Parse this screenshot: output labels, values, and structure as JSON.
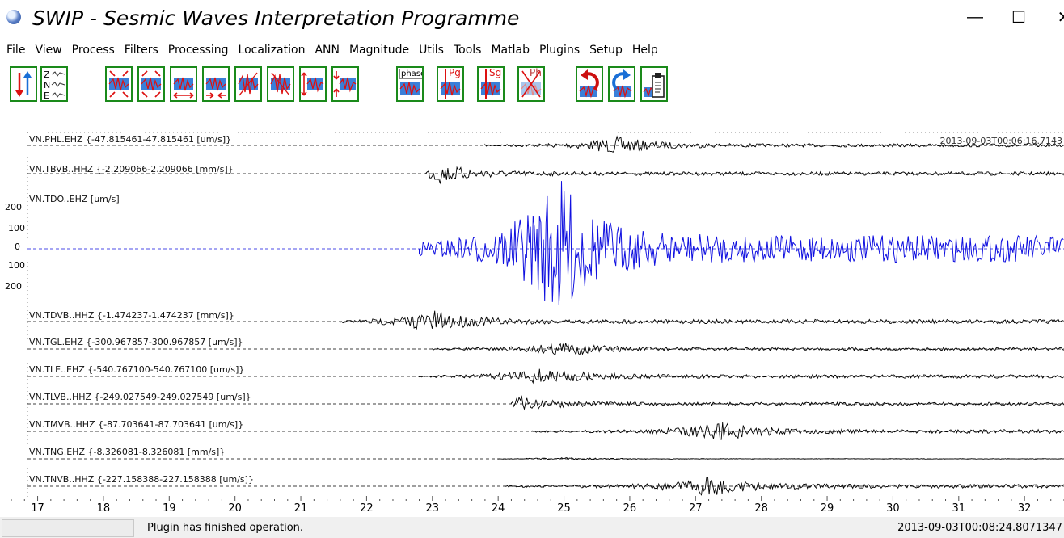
{
  "window": {
    "title": "SWIP - Sesmic Waves Interpretation Programme",
    "minimize_glyph": "—",
    "maximize_glyph": "☐",
    "close_glyph": "✕"
  },
  "menu": [
    "File",
    "View",
    "Process",
    "Filters",
    "Processing",
    "Localization",
    "ANN",
    "Magnitude",
    "Utils",
    "Tools",
    "Matlab",
    "Plugins",
    "Setup",
    "Help"
  ],
  "toolbar": {
    "buttons": [
      {
        "icon": "sort-traces-icon"
      },
      {
        "icon": "components-zne-icon",
        "text": "Z N E"
      },
      {
        "icon": "zoom-in-icon"
      },
      {
        "icon": "zoom-out-icon"
      },
      {
        "icon": "time-expand-icon"
      },
      {
        "icon": "time-compress-icon"
      },
      {
        "icon": "amplitude-up-icon"
      },
      {
        "icon": "amplitude-down-icon"
      },
      {
        "icon": "amplitude-increase-icon"
      },
      {
        "icon": "amplitude-decrease-icon"
      },
      {
        "icon": "phase-icon",
        "text": "phase"
      },
      {
        "icon": "pg-pick-icon",
        "text": "Pg"
      },
      {
        "icon": "sg-pick-icon",
        "text": "Sg"
      },
      {
        "icon": "delete-ph-icon",
        "text": "Ph"
      },
      {
        "icon": "undo-icon"
      },
      {
        "icon": "redo-icon"
      },
      {
        "icon": "clipboard-icon"
      }
    ]
  },
  "traces": [
    {
      "label": "VN.PHL.EHZ {-47.815461-47.815461 [um/s]}",
      "color": "#000000",
      "onset": 23.8,
      "peak": 25.8,
      "amp": 0.7
    },
    {
      "label": "VN.TBVB..HHZ {-2.209066-2.209066 [mm/s]}",
      "color": "#000000",
      "onset": 22.9,
      "peak": 23.1,
      "amp": 0.7
    },
    {
      "label": "VN.TDO..EHZ [um/s]",
      "color": "#1010e0",
      "onset": 22.8,
      "peak": 24.9,
      "amp": 1.0
    },
    {
      "label": "VN.TDVB..HHZ {-1.474237-1.474237 [mm/s]}",
      "color": "#000000",
      "onset": 21.6,
      "peak": 23.0,
      "amp": 0.9
    },
    {
      "label": "VN.TGL.EHZ {-300.967857-300.967857 [um/s]}",
      "color": "#000000",
      "onset": 23.0,
      "peak": 25.0,
      "amp": 0.7
    },
    {
      "label": "VN.TLE..EHZ {-540.767100-540.767100 [um/s]}",
      "color": "#000000",
      "onset": 22.8,
      "peak": 24.7,
      "amp": 0.8
    },
    {
      "label": "VN.TLVB..HHZ {-249.027549-249.027549 [um/s]}",
      "color": "#000000",
      "onset": 24.2,
      "peak": 24.3,
      "amp": 0.7
    },
    {
      "label": "VN.TMVB..HHZ {-87.703641-87.703641 [um/s]}",
      "color": "#000000",
      "onset": 24.5,
      "peak": 27.4,
      "amp": 0.8
    },
    {
      "label": "VN.TNG.EHZ {-8.326081-8.326081 [mm/s]}",
      "color": "#000000",
      "onset": 24.0,
      "peak": 25.0,
      "amp": 0.3
    },
    {
      "label": "VN.TNVB..HHZ {-227.158388-227.158388 [um/s]}",
      "color": "#000000",
      "onset": 24.1,
      "peak": 27.2,
      "amp": 0.8
    }
  ],
  "yaxis": [
    "200",
    "100",
    "0",
    "100",
    "200"
  ],
  "xaxis": {
    "min": 16.6,
    "max": 32.6,
    "ticks": [
      "17",
      "18",
      "19",
      "20",
      "21",
      "22",
      "23",
      "24",
      "25",
      "26",
      "27",
      "28",
      "29",
      "30",
      "31",
      "32"
    ]
  },
  "timestamps": {
    "top": "2013-09-03T00:06:16.7143",
    "bottom": "2013-09-03T00:08:24.8071347"
  },
  "status": {
    "message": "Plugin has finished operation."
  }
}
